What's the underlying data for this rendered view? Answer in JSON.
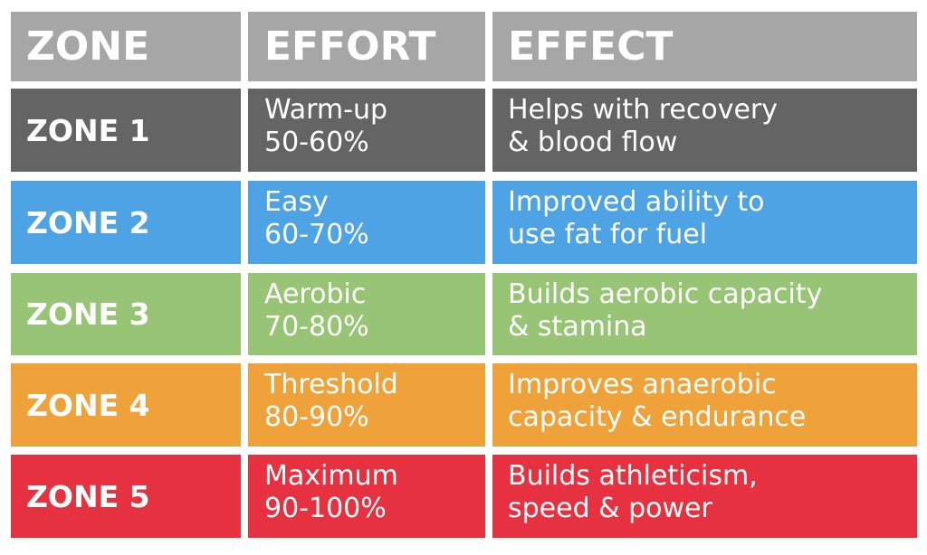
{
  "header": {
    "zone": "ZONE",
    "effort": "EFFORT",
    "effect": "EFFECT"
  },
  "colors": {
    "header": "#a6a6a6",
    "zone1": "#646464",
    "zone2": "#4ea3e4",
    "zone3": "#97c575",
    "zone4": "#f0a23a",
    "zone5": "#e63240"
  },
  "rows": [
    {
      "zone": "ZONE 1",
      "effort_name": "Warm-up",
      "effort_range": "50-60%",
      "effect": "Helps with recovery\n& blood flow"
    },
    {
      "zone": "ZONE 2",
      "effort_name": "Easy",
      "effort_range": "60-70%",
      "effect": "Improved ability to\nuse fat for fuel"
    },
    {
      "zone": "ZONE 3",
      "effort_name": "Aerobic",
      "effort_range": "70-80%",
      "effect": "Builds aerobic capacity\n& stamina"
    },
    {
      "zone": "ZONE 4",
      "effort_name": "Threshold",
      "effort_range": "80-90%",
      "effect": "Improves anaerobic\ncapacity & endurance"
    },
    {
      "zone": "ZONE 5",
      "effort_name": "Maximum",
      "effort_range": "90-100%",
      "effect": "Builds athleticism,\nspeed & power"
    }
  ]
}
